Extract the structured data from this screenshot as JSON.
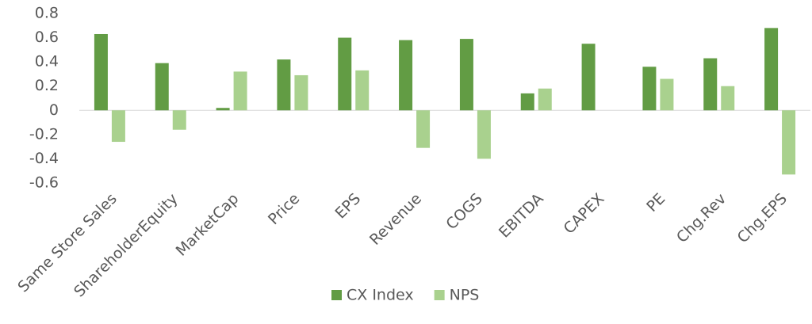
{
  "chart_data": {
    "type": "bar",
    "categories": [
      "Same Store Sales",
      "ShareholderEquity",
      "MarketCap",
      "Price",
      "EPS",
      "Revenue",
      "COGS",
      "EBITDA",
      "CAPEX",
      "PE",
      "Chg.Rev",
      "Chg.EPS"
    ],
    "series": [
      {
        "name": "CX Index",
        "color": "#629c44",
        "values": [
          0.63,
          0.39,
          0.02,
          0.42,
          0.6,
          0.58,
          0.59,
          0.14,
          0.55,
          0.36,
          0.43,
          0.68
        ]
      },
      {
        "name": "NPS",
        "color": "#a9d18e",
        "values": [
          -0.26,
          -0.16,
          0.32,
          0.29,
          0.33,
          -0.31,
          -0.4,
          0.18,
          0,
          0.26,
          0.2,
          -0.53
        ]
      }
    ],
    "ylim": [
      -0.6,
      0.8
    ],
    "yticks": [
      -0.6,
      -0.4,
      -0.2,
      0,
      0.2,
      0.4,
      0.6,
      0.8
    ],
    "grid": false,
    "legend": "bottom"
  }
}
